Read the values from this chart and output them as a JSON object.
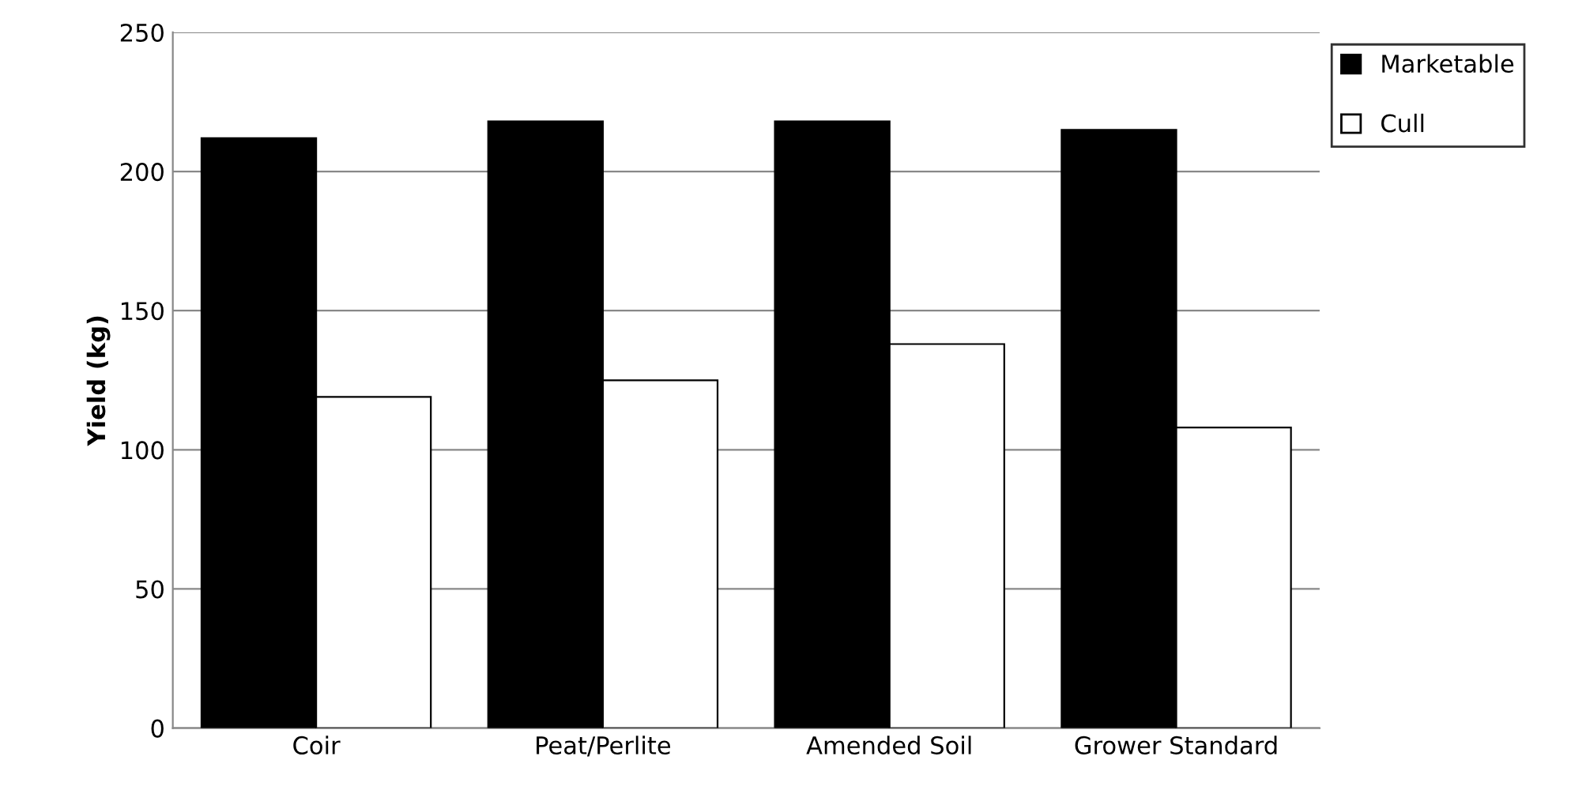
{
  "chart_data": {
    "type": "bar",
    "ylabel": "Yield (kg)",
    "categories": [
      "Coir",
      "Peat/Perlite",
      "Amended Soil",
      "Grower Standard"
    ],
    "series": [
      {
        "name": "Marketable",
        "color": "#000000",
        "values": [
          212,
          218,
          218,
          215
        ]
      },
      {
        "name": "Cull",
        "color": "#ffffff",
        "values": [
          119,
          125,
          138,
          108
        ]
      }
    ],
    "ylim": [
      0,
      250
    ],
    "yticks": [
      0,
      50,
      100,
      150,
      200,
      250
    ],
    "grid": "y",
    "legend": "top right"
  }
}
